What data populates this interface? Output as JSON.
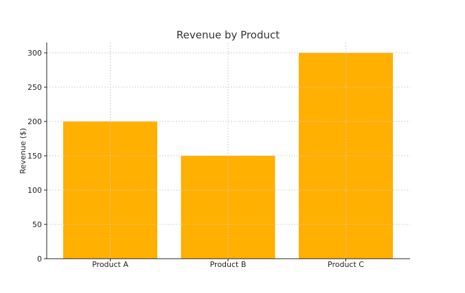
{
  "chart_data": {
    "type": "bar",
    "title": "Revenue by Product",
    "xlabel": "",
    "ylabel": "Revenue ($)",
    "categories": [
      "Product A",
      "Product B",
      "Product C"
    ],
    "values": [
      200,
      150,
      300
    ],
    "ylim": [
      0,
      315
    ],
    "yticks": [
      0,
      50,
      100,
      150,
      200,
      250,
      300
    ],
    "grid": true,
    "bar_color": "#ffb000"
  }
}
